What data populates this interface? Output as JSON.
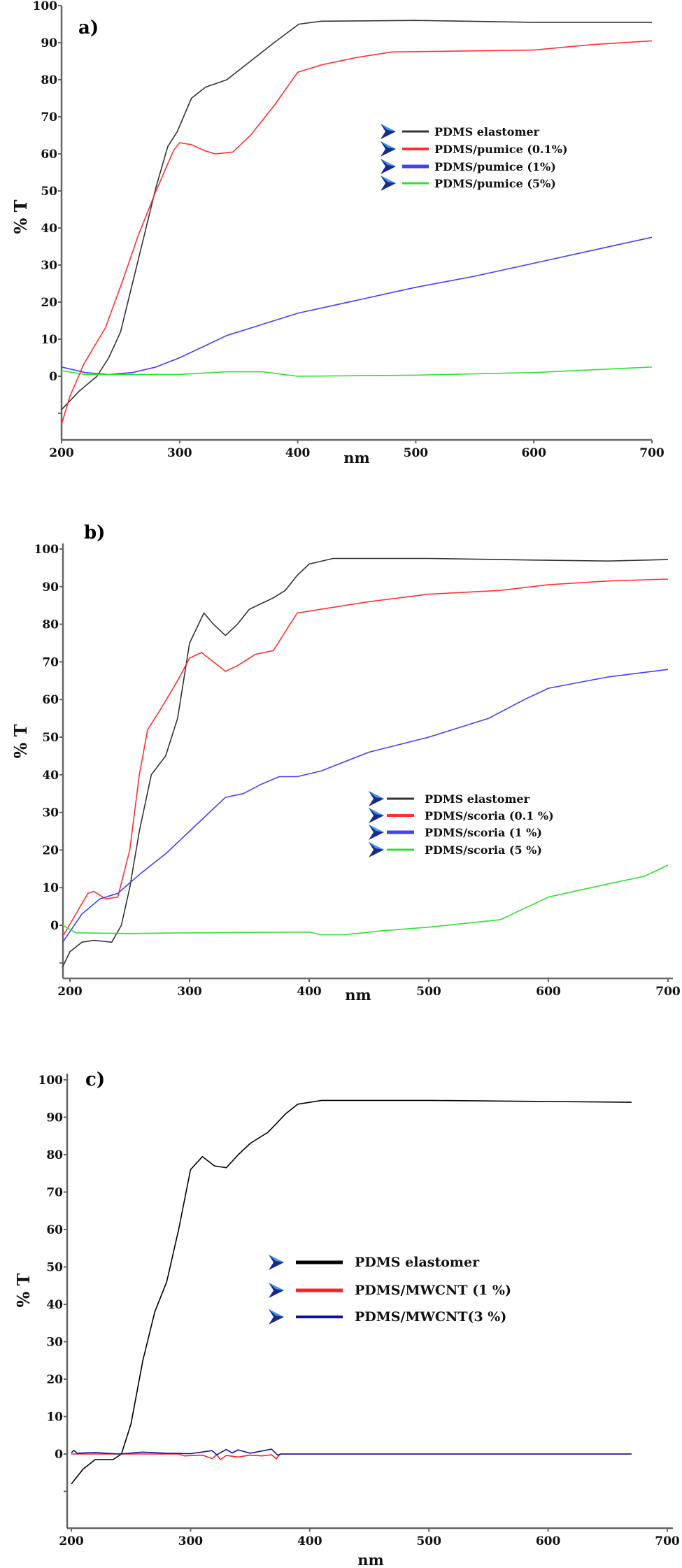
{
  "chart_data": [
    {
      "type": "line",
      "title": "a)",
      "xlabel": "nm",
      "ylabel": "% T",
      "xlim": [
        200,
        700
      ],
      "ylim": [
        -17,
        100
      ],
      "xticks": [
        "200",
        "300",
        "400",
        "500",
        "600",
        "700"
      ],
      "yticks": [
        "0",
        "10",
        "20",
        "30",
        "40",
        "50",
        "60",
        "70",
        "80",
        "90",
        "100"
      ],
      "grid": false,
      "legend_position": "center-right",
      "series": [
        {
          "name": "PDMS elastomer",
          "color": "#333333",
          "points": [
            [
              200,
              -9
            ],
            [
              215,
              -4
            ],
            [
              230,
              0
            ],
            [
              240,
              5
            ],
            [
              250,
              12
            ],
            [
              260,
              25
            ],
            [
              270,
              38
            ],
            [
              280,
              51
            ],
            [
              290,
              62
            ],
            [
              298,
              66
            ],
            [
              310,
              75
            ],
            [
              322,
              78
            ],
            [
              340,
              80
            ],
            [
              360,
              85
            ],
            [
              380,
              90
            ],
            [
              401,
              95
            ],
            [
              420,
              95.8
            ],
            [
              500,
              96
            ],
            [
              600,
              95.5
            ],
            [
              700,
              95.5
            ]
          ]
        },
        {
          "name": "PDMS/pumice (0.1%)",
          "color": "#ff3030",
          "points": [
            [
              200,
              -13
            ],
            [
              207,
              -5.5
            ],
            [
              219,
              3.4
            ],
            [
              237,
              13
            ],
            [
              252,
              26
            ],
            [
              265,
              38
            ],
            [
              280,
              50
            ],
            [
              295,
              61
            ],
            [
              300,
              63
            ],
            [
              310,
              62.5
            ],
            [
              320,
              61
            ],
            [
              330,
              60
            ],
            [
              345,
              60.5
            ],
            [
              360,
              65
            ],
            [
              380,
              73
            ],
            [
              400,
              82
            ],
            [
              420,
              84
            ],
            [
              450,
              86
            ],
            [
              480,
              87.5
            ],
            [
              550,
              87.8
            ],
            [
              600,
              88
            ],
            [
              650,
              89.5
            ],
            [
              700,
              90.5
            ]
          ]
        },
        {
          "name": "PDMS/pumice (1%)",
          "color": "#4040ff",
          "points": [
            [
              200,
              2.5
            ],
            [
              220,
              1
            ],
            [
              240,
              0.5
            ],
            [
              260,
              1
            ],
            [
              280,
              2.5
            ],
            [
              300,
              5
            ],
            [
              320,
              8
            ],
            [
              340,
              11
            ],
            [
              360,
              13
            ],
            [
              380,
              15
            ],
            [
              400,
              17
            ],
            [
              450,
              20.5
            ],
            [
              500,
              24
            ],
            [
              550,
              27
            ],
            [
              600,
              30.5
            ],
            [
              650,
              34
            ],
            [
              700,
              37.5
            ]
          ]
        },
        {
          "name": "PDMS/pumice (5%)",
          "color": "#30e030",
          "points": [
            [
              200,
              1.5
            ],
            [
              220,
              0.5
            ],
            [
              300,
              0.5
            ],
            [
              340,
              1.2
            ],
            [
              370,
              1.2
            ],
            [
              400,
              0
            ],
            [
              500,
              0.3
            ],
            [
              600,
              1
            ],
            [
              700,
              2.5
            ]
          ]
        }
      ]
    },
    {
      "type": "line",
      "title": "b)",
      "xlabel": "nm",
      "ylabel": "% T",
      "xlim": [
        194,
        700
      ],
      "ylim": [
        -14,
        100
      ],
      "xticks": [
        "200",
        "300",
        "400",
        "500",
        "600",
        "700"
      ],
      "yticks": [
        "0",
        "10",
        "20",
        "30",
        "40",
        "50",
        "60",
        "70",
        "80",
        "90",
        "100"
      ],
      "grid": false,
      "legend_position": "center-right",
      "series": [
        {
          "name": "PDMS elastomer",
          "color": "#333333",
          "points": [
            [
              194,
              -11
            ],
            [
              200,
              -7
            ],
            [
              210,
              -4.5
            ],
            [
              220,
              -4
            ],
            [
              235,
              -4.5
            ],
            [
              243,
              0
            ],
            [
              250,
              10
            ],
            [
              258,
              25
            ],
            [
              268,
              40
            ],
            [
              280,
              45
            ],
            [
              290,
              55
            ],
            [
              300,
              75
            ],
            [
              312,
              83
            ],
            [
              320,
              80
            ],
            [
              330,
              77
            ],
            [
              340,
              80
            ],
            [
              350,
              84
            ],
            [
              370,
              87
            ],
            [
              380,
              89
            ],
            [
              390,
              93
            ],
            [
              400,
              96
            ],
            [
              420,
              97.5
            ],
            [
              500,
              97.5
            ],
            [
              600,
              97
            ],
            [
              650,
              96.8
            ],
            [
              700,
              97.2
            ]
          ]
        },
        {
          "name": "PDMS/scoria (0.1 %)",
          "color": "#ff3030",
          "points": [
            [
              194,
              -3
            ],
            [
              205,
              3
            ],
            [
              215,
              8.5
            ],
            [
              220,
              9
            ],
            [
              230,
              7
            ],
            [
              240,
              7.5
            ],
            [
              250,
              20
            ],
            [
              258,
              40
            ],
            [
              265,
              52
            ],
            [
              275,
              57
            ],
            [
              290,
              65
            ],
            [
              300,
              71
            ],
            [
              310,
              72.5
            ],
            [
              320,
              70
            ],
            [
              330,
              67.5
            ],
            [
              340,
              69
            ],
            [
              355,
              72
            ],
            [
              370,
              73
            ],
            [
              390,
              83
            ],
            [
              400,
              83.5
            ],
            [
              450,
              86
            ],
            [
              500,
              88
            ],
            [
              560,
              89
            ],
            [
              600,
              90.5
            ],
            [
              650,
              91.5
            ],
            [
              700,
              92
            ]
          ]
        },
        {
          "name": "PDMS/scoria (1 %)",
          "color": "#4040ff",
          "points": [
            [
              194,
              -4.5
            ],
            [
              210,
              3
            ],
            [
              225,
              7
            ],
            [
              240,
              8.5
            ],
            [
              260,
              14
            ],
            [
              280,
              19
            ],
            [
              300,
              25
            ],
            [
              320,
              31
            ],
            [
              330,
              34
            ],
            [
              345,
              35
            ],
            [
              360,
              37.5
            ],
            [
              375,
              39.5
            ],
            [
              390,
              39.5
            ],
            [
              410,
              41
            ],
            [
              450,
              46
            ],
            [
              500,
              50
            ],
            [
              550,
              55
            ],
            [
              580,
              60
            ],
            [
              600,
              63
            ],
            [
              650,
              66
            ],
            [
              700,
              68
            ]
          ]
        },
        {
          "name": "PDMS/scoria (5 %)",
          "color": "#30e030",
          "points": [
            [
              194,
              0
            ],
            [
              205,
              -2
            ],
            [
              250,
              -2.2
            ],
            [
              300,
              -2
            ],
            [
              400,
              -1.8
            ],
            [
              410,
              -2.5
            ],
            [
              430,
              -2.5
            ],
            [
              460,
              -1.5
            ],
            [
              500,
              -0.5
            ],
            [
              560,
              1.5
            ],
            [
              580,
              4.5
            ],
            [
              600,
              7.5
            ],
            [
              650,
              11
            ],
            [
              680,
              13
            ],
            [
              700,
              16
            ]
          ]
        }
      ]
    },
    {
      "type": "line",
      "title": "c)",
      "xlabel": "nm",
      "ylabel": "% T",
      "xlim": [
        196,
        700
      ],
      "ylim": [
        -20,
        100
      ],
      "xticks": [
        "200",
        "300",
        "400",
        "500",
        "600",
        "700"
      ],
      "yticks": [
        "0",
        "10",
        "20",
        "30",
        "40",
        "50",
        "60",
        "70",
        "80",
        "90",
        "100"
      ],
      "grid": false,
      "legend_position": "center",
      "series": [
        {
          "name": "PDMS elastomer",
          "color": "#000000",
          "points": [
            [
              200,
              -8
            ],
            [
              210,
              -4
            ],
            [
              220,
              -1.5
            ],
            [
              235,
              -1.5
            ],
            [
              242,
              0
            ],
            [
              250,
              8
            ],
            [
              260,
              25
            ],
            [
              270,
              38
            ],
            [
              280,
              46
            ],
            [
              290,
              60
            ],
            [
              300,
              76
            ],
            [
              310,
              79.5
            ],
            [
              320,
              77
            ],
            [
              330,
              76.5
            ],
            [
              340,
              80
            ],
            [
              350,
              83
            ],
            [
              365,
              86
            ],
            [
              380,
              91
            ],
            [
              390,
              93.5
            ],
            [
              410,
              94.5
            ],
            [
              500,
              94.5
            ],
            [
              600,
              94.2
            ],
            [
              670,
              94
            ]
          ]
        },
        {
          "name": "PDMS/MWCNT (1 %)",
          "color": "#ff2020",
          "points": [
            [
              200,
              0
            ],
            [
              290,
              0
            ],
            [
              295,
              -0.5
            ],
            [
              310,
              -0.3
            ],
            [
              318,
              -1.2
            ],
            [
              322,
              -0.2
            ],
            [
              325,
              -1.5
            ],
            [
              330,
              -0.4
            ],
            [
              340,
              -0.8
            ],
            [
              350,
              -0.3
            ],
            [
              360,
              -0.5
            ],
            [
              368,
              -0.2
            ],
            [
              372,
              -1.3
            ],
            [
              375,
              0
            ],
            [
              670,
              0
            ]
          ]
        },
        {
          "name": "PDMS/MWCNT(3  %)",
          "color": "#1010a0",
          "points": [
            [
              200,
              0.3
            ],
            [
              202,
              1
            ],
            [
              205,
              0.2
            ],
            [
              220,
              0.4
            ],
            [
              240,
              0
            ],
            [
              260,
              0.5
            ],
            [
              280,
              0.2
            ],
            [
              300,
              0.1
            ],
            [
              318,
              0.9
            ],
            [
              322,
              -0.2
            ],
            [
              330,
              1.2
            ],
            [
              335,
              0.3
            ],
            [
              340,
              1.1
            ],
            [
              350,
              0.2
            ],
            [
              360,
              0.8
            ],
            [
              368,
              1.3
            ],
            [
              373,
              -0.3
            ],
            [
              376,
              0
            ],
            [
              670,
              0
            ]
          ]
        }
      ]
    }
  ]
}
